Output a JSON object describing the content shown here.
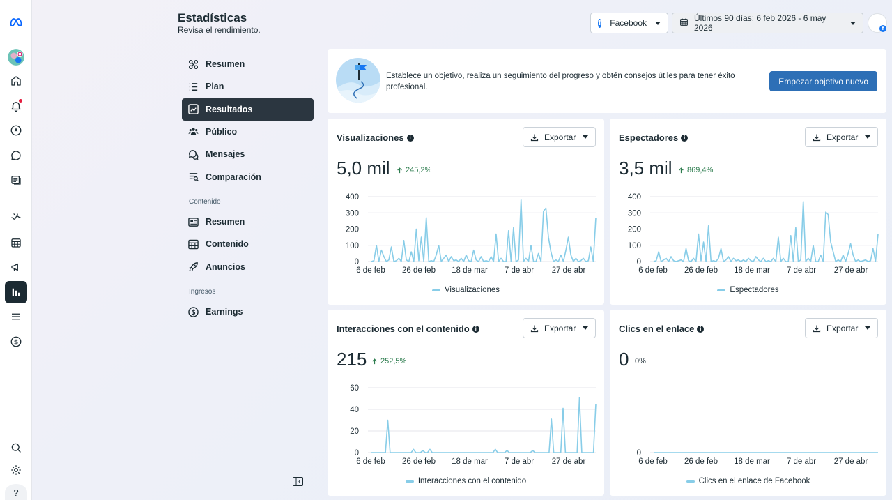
{
  "header": {
    "title": "Estadísticas",
    "subtitle": "Revisa el rendimiento.",
    "platform_label": "Facebook",
    "date_range_label": "Últimos 90 días: 6 feb 2026 - 6 may 2026"
  },
  "rail": {
    "icons": [
      "meta-logo-icon",
      "profile-avatar-icon",
      "home-icon",
      "bell-icon",
      "compass-icon",
      "chat-icon",
      "feed-icon",
      "inbox-icon",
      "calendar-icon",
      "megaphone-icon",
      "insights-icon",
      "menu-icon",
      "dollar-icon",
      "search-icon",
      "gear-icon",
      "help-icon"
    ],
    "help_label": "?"
  },
  "nav": {
    "main": [
      {
        "label": "Resumen",
        "icon": "overview-icon"
      },
      {
        "label": "Plan",
        "icon": "list-icon"
      },
      {
        "label": "Resultados",
        "icon": "trend-icon",
        "active": true
      },
      {
        "label": "Público",
        "icon": "people-icon"
      },
      {
        "label": "Mensajes",
        "icon": "messages-icon"
      },
      {
        "label": "Comparación",
        "icon": "compare-icon"
      }
    ],
    "content_section": "Contenido",
    "content": [
      {
        "label": "Resumen",
        "icon": "card-icon"
      },
      {
        "label": "Contenido",
        "icon": "grid-icon"
      },
      {
        "label": "Anuncios",
        "icon": "rocket-icon"
      }
    ],
    "income_section": "Ingresos",
    "income": [
      {
        "label": "Earnings",
        "icon": "dollar-icon"
      }
    ]
  },
  "goal_banner": {
    "text": "Establece un objetivo, realiza un seguimiento del progreso y obtén consejos útiles para tener éxito profesional.",
    "button_label": "Empezar objetivo nuevo"
  },
  "export_label": "Exportar",
  "colors": {
    "line": "#88cde8",
    "accent": "#2d6fb6",
    "positive": "#2e7d4f",
    "active_nav": "#2b3640"
  },
  "cards": [
    {
      "title": "Visualizaciones",
      "value": "5,0 mil",
      "delta": "245,2%",
      "delta_up": true,
      "legend": "Visualizaciones"
    },
    {
      "title": "Espectadores",
      "value": "3,5 mil",
      "delta": "869,4%",
      "delta_up": true,
      "legend": "Espectadores"
    },
    {
      "title": "Interacciones con el contenido",
      "value": "215",
      "delta": "252,5%",
      "delta_up": true,
      "legend": "Interacciones con el contenido"
    },
    {
      "title": "Clics en el enlace",
      "value": "0",
      "delta": "0%",
      "delta_up": false,
      "legend": "Clics en el enlace de Facebook"
    }
  ],
  "chart_data": [
    {
      "type": "line",
      "series": [
        {
          "name": "Visualizaciones",
          "values": [
            0,
            5,
            100,
            0,
            70,
            30,
            0,
            10,
            90,
            0,
            5,
            20,
            0,
            130,
            10,
            0,
            60,
            0,
            200,
            5,
            150,
            0,
            270,
            0,
            5,
            0,
            40,
            100,
            0,
            20,
            40,
            0,
            30,
            5,
            10,
            0,
            20,
            0,
            40,
            5,
            0,
            70,
            10,
            0,
            30,
            0,
            5,
            0,
            30,
            0,
            170,
            0,
            20,
            0,
            0,
            190,
            0,
            210,
            0,
            10,
            380,
            0,
            20,
            0,
            100,
            0,
            0,
            50,
            0,
            310,
            330,
            150,
            60,
            0,
            10,
            0,
            40,
            0,
            70,
            150,
            40,
            0,
            20,
            0,
            5,
            20,
            0,
            5,
            90,
            0,
            270
          ]
        }
      ],
      "x_ticks": [
        "6 de feb",
        "26 de feb",
        "18 de mar",
        "7 de abr",
        "27 de abr"
      ],
      "y_ticks": [
        0,
        100,
        200,
        300,
        400
      ],
      "ylim": [
        0,
        400
      ]
    },
    {
      "type": "line",
      "series": [
        {
          "name": "Espectadores",
          "values": [
            0,
            5,
            60,
            0,
            10,
            20,
            0,
            30,
            5,
            0,
            5,
            10,
            0,
            80,
            5,
            0,
            20,
            0,
            170,
            5,
            120,
            0,
            220,
            0,
            5,
            0,
            20,
            80,
            0,
            10,
            30,
            0,
            20,
            5,
            10,
            0,
            10,
            0,
            20,
            5,
            0,
            30,
            10,
            0,
            20,
            0,
            5,
            0,
            20,
            0,
            150,
            0,
            20,
            0,
            0,
            160,
            0,
            210,
            0,
            10,
            370,
            0,
            20,
            0,
            100,
            0,
            0,
            40,
            0,
            305,
            290,
            120,
            60,
            0,
            10,
            0,
            40,
            0,
            50,
            110,
            40,
            0,
            10,
            0,
            5,
            10,
            0,
            5,
            80,
            0,
            170
          ]
        }
      ],
      "x_ticks": [
        "6 de feb",
        "26 de feb",
        "18 de mar",
        "7 de abr",
        "27 de abr"
      ],
      "y_ticks": [
        0,
        100,
        200,
        300,
        400
      ],
      "ylim": [
        0,
        400
      ]
    },
    {
      "type": "line",
      "series": [
        {
          "name": "Interacciones con el contenido",
          "values": [
            0,
            0,
            0,
            0,
            0,
            0,
            0,
            30,
            0,
            0,
            0,
            0,
            0,
            0,
            0,
            0,
            0,
            0,
            3,
            0,
            0,
            0,
            2,
            0,
            0,
            3,
            0,
            0,
            0,
            0,
            0,
            0,
            0,
            0,
            0,
            0,
            0,
            0,
            0,
            0,
            0,
            0,
            0,
            0,
            0,
            0,
            0,
            0,
            0,
            0,
            0,
            0,
            0,
            3,
            0,
            0,
            0,
            0,
            2,
            0,
            0,
            0,
            0,
            0,
            0,
            0,
            0,
            0,
            0,
            2,
            0,
            0,
            0,
            0,
            0,
            0,
            0,
            31,
            0,
            0,
            0,
            0,
            41,
            0,
            0,
            0,
            0,
            0,
            0,
            51,
            0,
            0,
            0,
            0,
            0,
            0,
            45
          ]
        }
      ],
      "x_ticks": [
        "6 de feb",
        "26 de feb",
        "18 de mar",
        "7 de abr",
        "27 de abr"
      ],
      "y_ticks": [
        0,
        20,
        40,
        60
      ],
      "ylim": [
        0,
        60
      ]
    },
    {
      "type": "line",
      "series": [
        {
          "name": "Clics en el enlace de Facebook",
          "values": [
            0,
            0,
            0,
            0,
            0,
            0,
            0,
            0,
            0,
            0,
            0,
            0,
            0,
            0,
            0,
            0,
            0,
            0,
            0,
            0,
            0,
            0,
            0,
            0,
            0,
            0,
            0,
            0,
            0,
            0,
            0,
            0,
            0,
            0,
            0,
            0,
            0,
            0,
            0,
            0,
            0,
            0,
            0,
            0,
            0,
            0,
            0,
            0,
            0,
            0,
            0,
            0,
            0,
            0,
            0,
            0,
            0,
            0,
            0,
            0,
            0,
            0,
            0,
            0,
            0,
            0,
            0,
            0,
            0,
            0,
            0,
            0,
            0,
            0,
            0,
            0,
            0,
            0,
            0,
            0,
            0,
            0,
            0,
            0,
            0,
            0,
            0,
            0,
            0,
            0,
            0
          ]
        }
      ],
      "x_ticks": [
        "6 de feb",
        "26 de feb",
        "18 de mar",
        "7 de abr",
        "27 de abr"
      ],
      "y_ticks": [
        0
      ],
      "ylim": [
        0,
        1
      ]
    }
  ]
}
